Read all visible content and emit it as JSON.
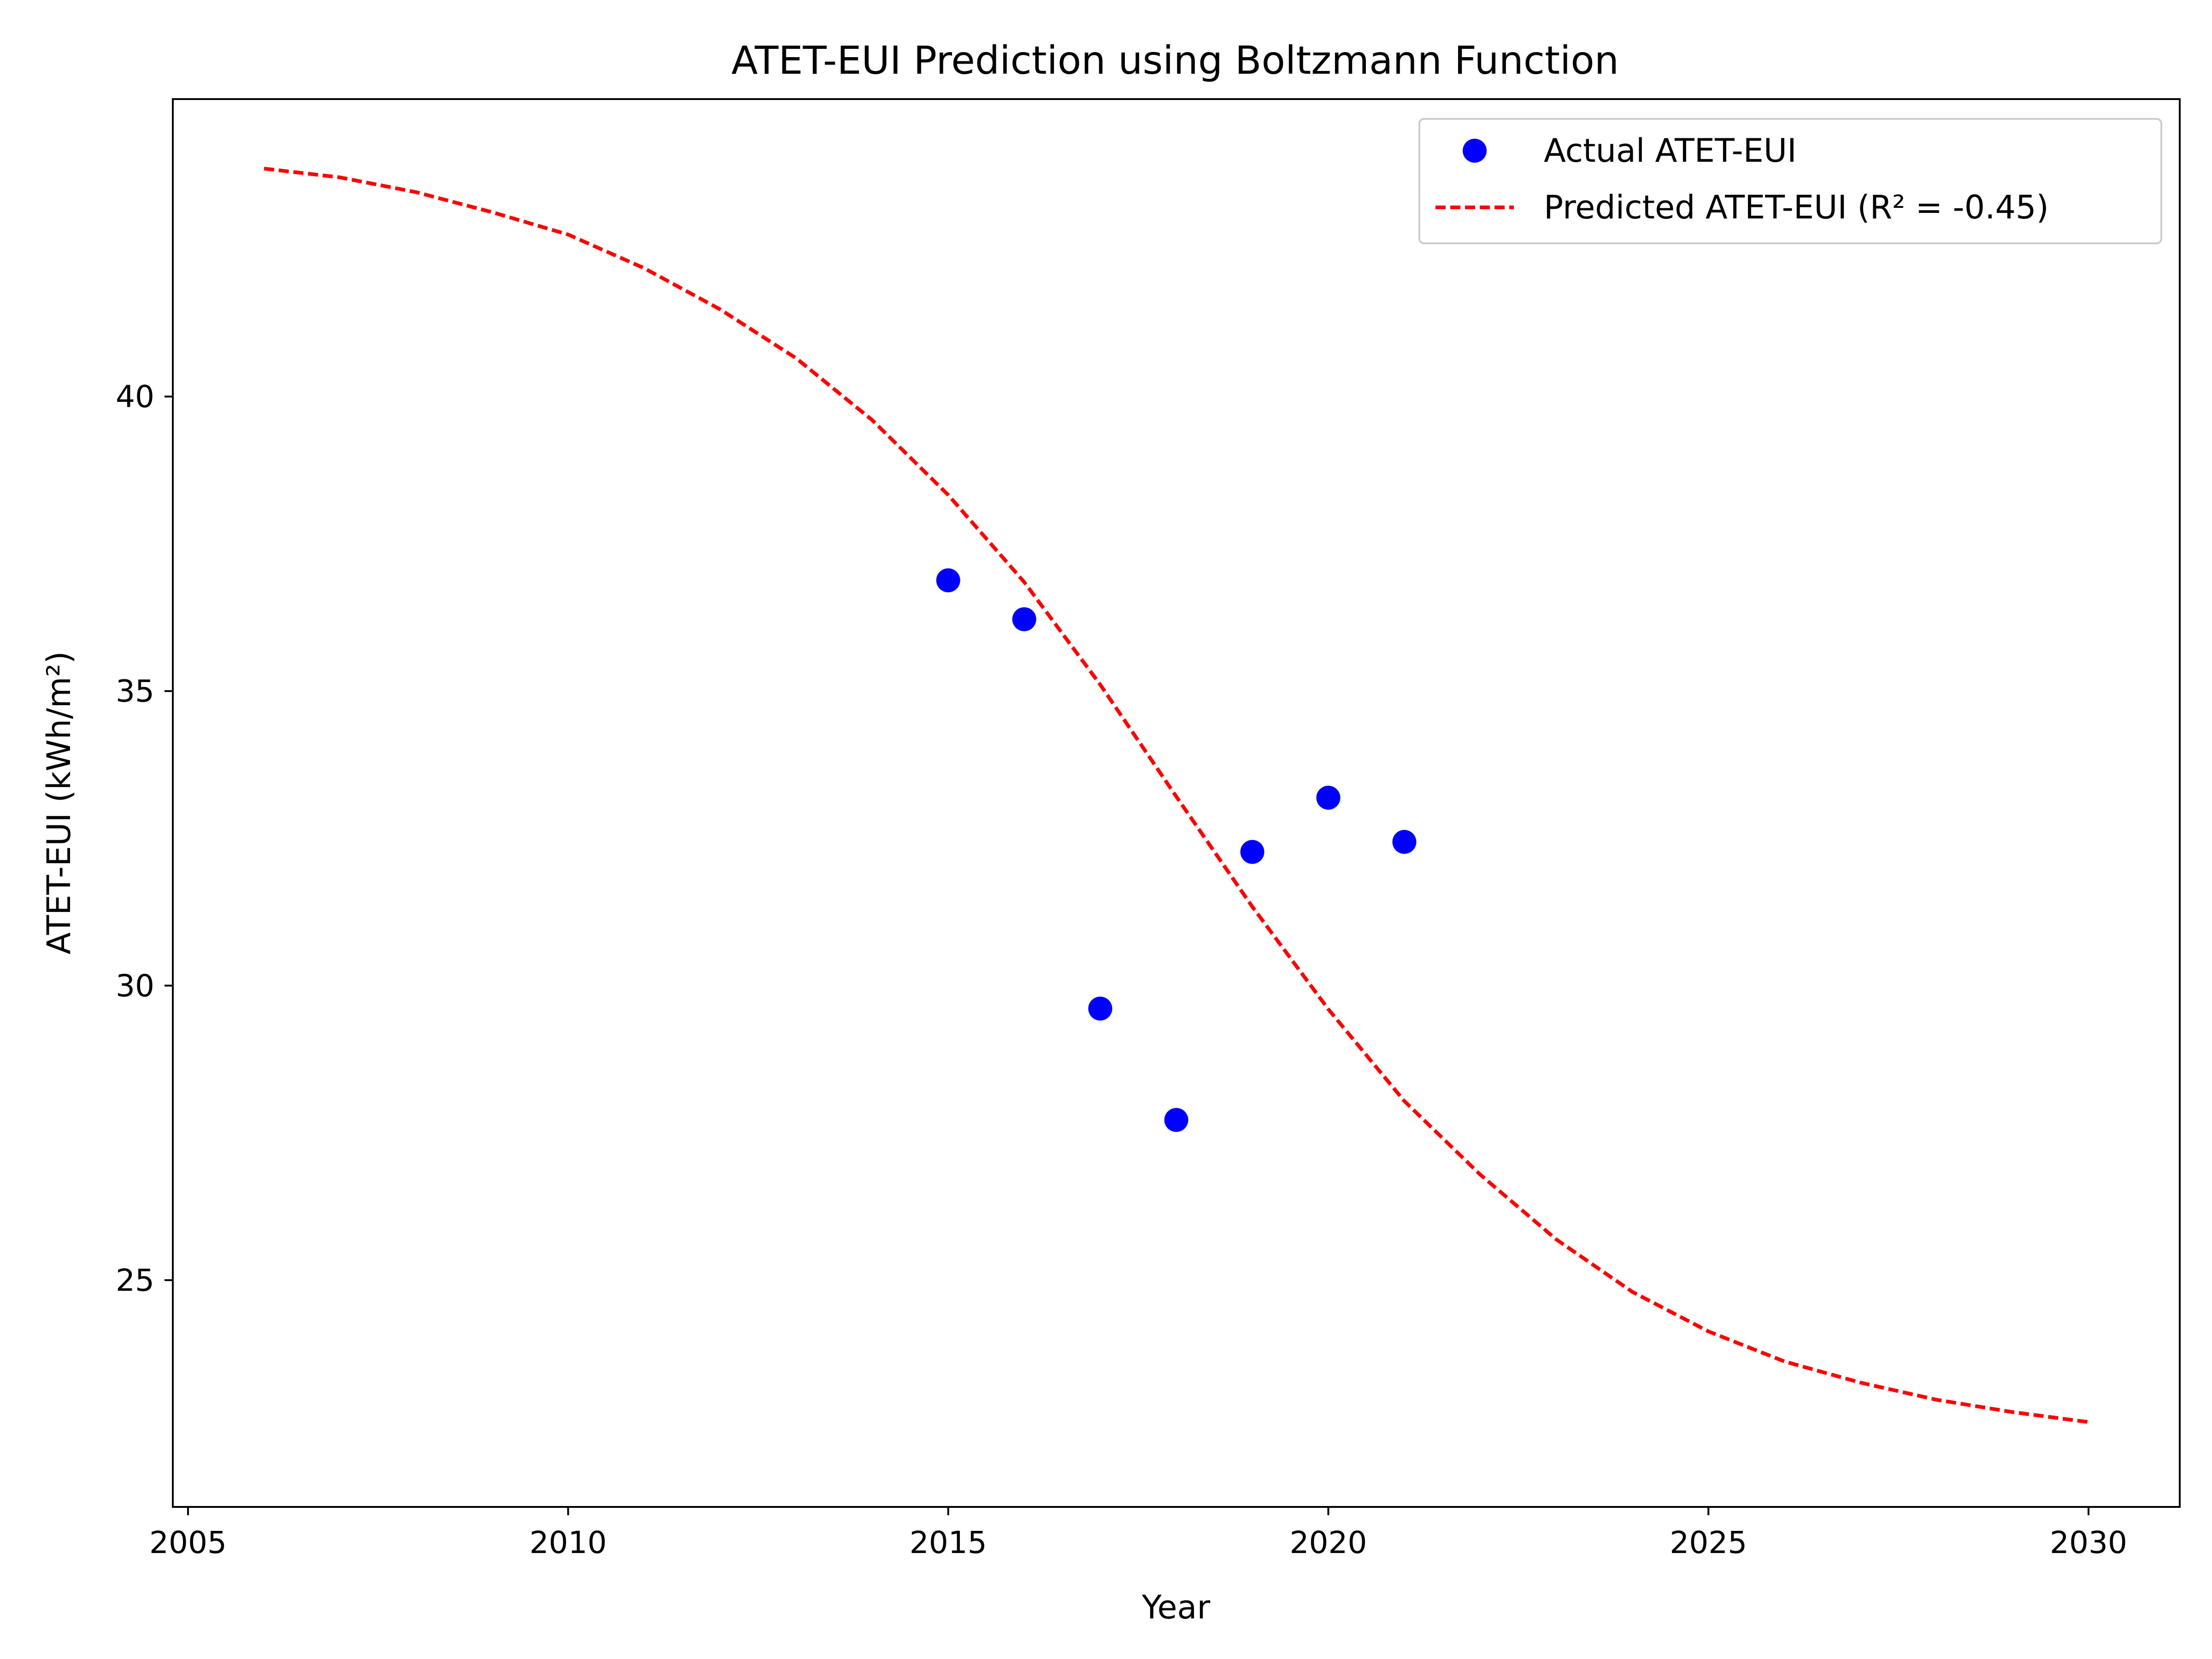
{
  "chart_data": {
    "type": "scatter",
    "title": "ATET-EUI Prediction using Boltzmann Function",
    "xlabel": "Year",
    "ylabel": "ATET-EUI (kWh/m²)",
    "xlim": [
      2004.8,
      2031.2
    ],
    "ylim": [
      21.15,
      45.05
    ],
    "xticks": [
      2005,
      2010,
      2015,
      2020,
      2025,
      2030
    ],
    "yticks": [
      25,
      30,
      35,
      40
    ],
    "grid": false,
    "legend_position": "top-right",
    "series": [
      {
        "name": "Actual ATET-EUI",
        "kind": "scatter",
        "color": "#0000ff",
        "x": [
          2015,
          2016,
          2017,
          2018,
          2019,
          2020,
          2021
        ],
        "y": [
          36.88,
          36.22,
          29.61,
          27.72,
          32.27,
          33.19,
          32.44
        ]
      },
      {
        "name": "Predicted ATET-EUI (R² = -0.45)",
        "kind": "line",
        "style": "dashed",
        "color": "#ff0000",
        "x": [
          2006,
          2007,
          2008,
          2009,
          2010,
          2011,
          2012,
          2013,
          2014,
          2015,
          2016,
          2017,
          2018,
          2019,
          2020,
          2021,
          2022,
          2023,
          2024,
          2025,
          2026,
          2027,
          2028,
          2029,
          2030
        ],
        "y": [
          43.87,
          43.72,
          43.47,
          43.13,
          42.75,
          42.18,
          41.48,
          40.65,
          39.6,
          38.33,
          36.85,
          35.11,
          33.21,
          31.34,
          29.6,
          28.04,
          26.79,
          25.69,
          24.8,
          24.13,
          23.62,
          23.26,
          22.97,
          22.76,
          22.59
        ]
      }
    ]
  }
}
